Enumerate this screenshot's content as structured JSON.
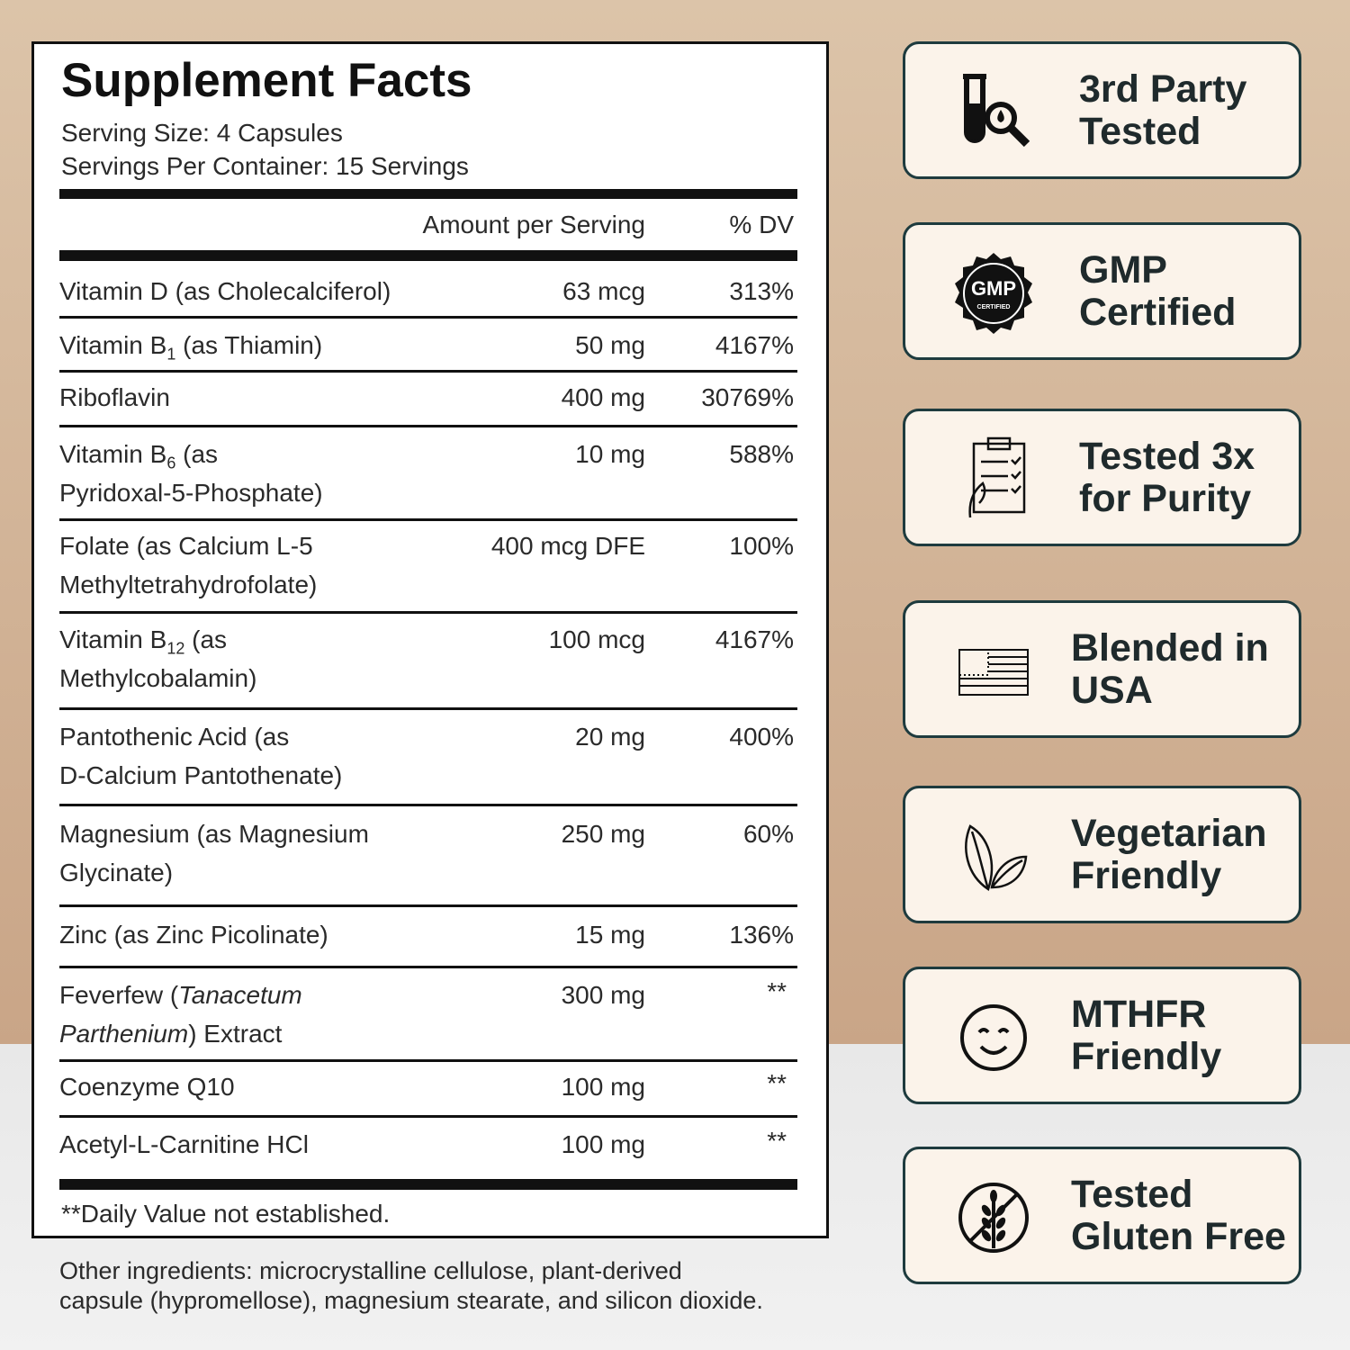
{
  "facts": {
    "title": "Supplement Facts",
    "serving_size": "Serving Size: 4 Capsules",
    "servings_per_container": "Servings Per Container: 15 Servings",
    "header": {
      "amount": "Amount per Serving",
      "dv": "% DV"
    },
    "rows": [
      {
        "name": [
          [
            "Vitamin D (as Cholecalciferol)"
          ]
        ],
        "amount": "63 mcg",
        "dv": "313%"
      },
      {
        "name": [
          [
            "Vitamin B",
            {
              "sub": "1"
            },
            " (as Thiamin)"
          ]
        ],
        "amount": "50 mg",
        "dv": "4167%"
      },
      {
        "name": [
          [
            "Riboflavin"
          ]
        ],
        "amount": "400 mg",
        "dv": "30769%"
      },
      {
        "name": [
          [
            "Vitamin B",
            {
              "sub": "6"
            },
            " (as"
          ],
          [
            "Pyridoxal-5-Phosphate)"
          ]
        ],
        "amount": "10 mg",
        "dv": "588%"
      },
      {
        "name": [
          [
            "Folate (as Calcium L-5"
          ],
          [
            "Methyltetrahydrofolate)"
          ]
        ],
        "amount": "400 mcg DFE",
        "dv": "100%"
      },
      {
        "name": [
          [
            "Vitamin B",
            {
              "sub": "12"
            },
            " (as"
          ],
          [
            "Methylcobalamin)"
          ]
        ],
        "amount": "100 mcg",
        "dv": "4167%"
      },
      {
        "name": [
          [
            "Pantothenic Acid (as"
          ],
          [
            "D-Calcium Pantothenate)"
          ]
        ],
        "amount": "20 mg",
        "dv": "400%"
      },
      {
        "name": [
          [
            "Magnesium (as Magnesium"
          ],
          [
            "Glycinate)"
          ]
        ],
        "amount": "250 mg",
        "dv": "60%"
      },
      {
        "name": [
          [
            "Zinc (as Zinc Picolinate)"
          ]
        ],
        "amount": "15 mg",
        "dv": "136%"
      },
      {
        "name": [
          [
            "Feverfew (",
            {
              "italic": "Tanacetum"
            }
          ],
          [
            {
              "italic": "Parthenium"
            },
            ") Extract"
          ]
        ],
        "amount": "300 mg",
        "dv": "**"
      },
      {
        "name": [
          [
            "Coenzyme Q10"
          ]
        ],
        "amount": "100 mg",
        "dv": "**"
      },
      {
        "name": [
          [
            "Acetyl-L-Carnitine HCl"
          ]
        ],
        "amount": "100 mg",
        "dv": "**"
      }
    ],
    "footnote": "**Daily Value not established."
  },
  "other_ingredients": [
    "Other ingredients: microcrystalline cellulose, plant-derived",
    "capsule (hypromellose), magnesium stearate, and silicon dioxide."
  ],
  "badges": [
    {
      "lines": [
        "3rd Party",
        "Tested"
      ]
    },
    {
      "lines": [
        "GMP",
        "Certified"
      ],
      "seal": [
        "GMP",
        "CERTIFIED"
      ]
    },
    {
      "lines": [
        "Tested 3x",
        "for Purity"
      ]
    },
    {
      "lines": [
        "Blended in",
        "USA"
      ]
    },
    {
      "lines": [
        "Vegetarian",
        "Friendly"
      ]
    },
    {
      "lines": [
        "MTHFR",
        "Friendly"
      ]
    },
    {
      "lines": [
        "Tested",
        "Gluten Free"
      ]
    }
  ]
}
